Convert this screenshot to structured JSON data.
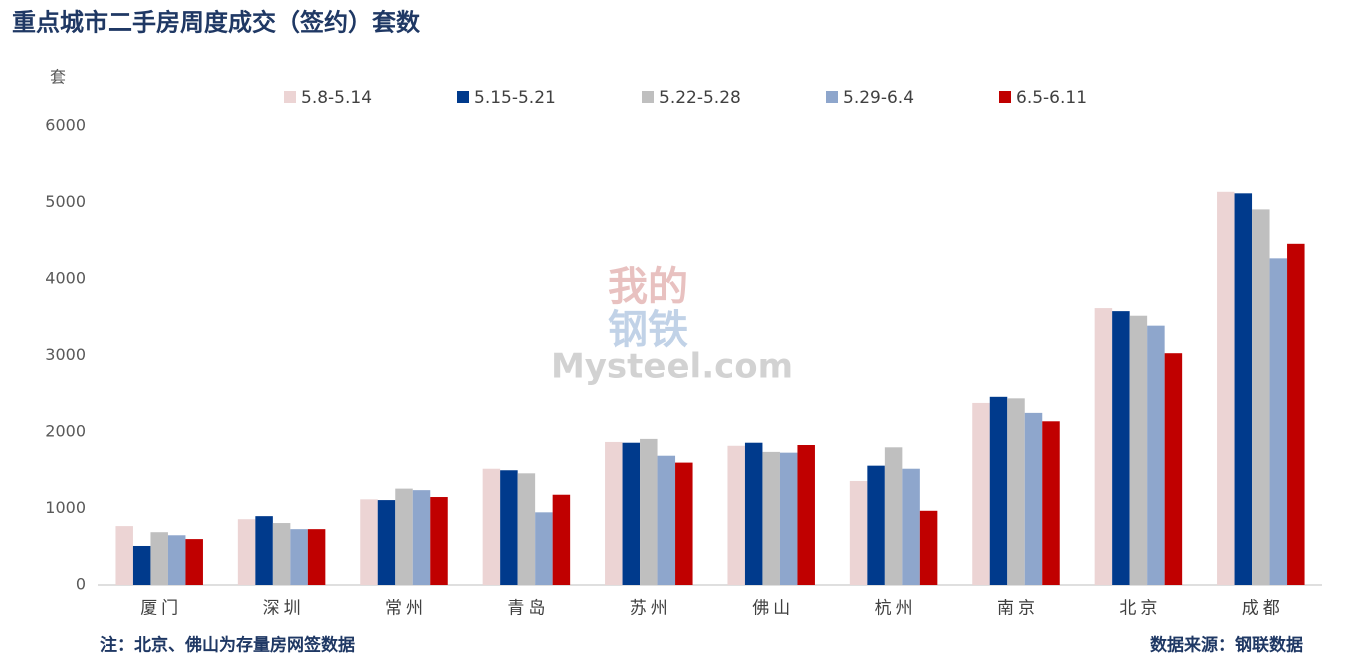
{
  "chart_data": {
    "type": "bar",
    "title": "重点城市二手房周度成交（签约）套数",
    "y_label": "套",
    "watermark": [
      "我的",
      "钢铁",
      "Mysteel.com"
    ],
    "note": "注：北京、佛山为存量房网签数据",
    "source": "数据来源：钢联数据",
    "categories": [
      "厦门",
      "深圳",
      "常州",
      "青岛",
      "苏州",
      "佛山",
      "杭州",
      "南京",
      "北京",
      "成都"
    ],
    "series": [
      {
        "name": "5.8-5.14",
        "color": "#ecd4d4",
        "values": [
          770,
          860,
          1120,
          1520,
          1870,
          1820,
          1360,
          2380,
          3620,
          5140
        ]
      },
      {
        "name": "5.15-5.21",
        "color": "#003a8c",
        "values": [
          510,
          900,
          1110,
          1500,
          1860,
          1860,
          1560,
          2460,
          3580,
          5120
        ]
      },
      {
        "name": "5.22-5.28",
        "color": "#bfbfbf",
        "values": [
          690,
          810,
          1260,
          1460,
          1910,
          1740,
          1800,
          2440,
          3520,
          4910
        ]
      },
      {
        "name": "5.29-6.4",
        "color": "#8ea6cc",
        "values": [
          650,
          730,
          1240,
          950,
          1690,
          1730,
          1520,
          2250,
          3390,
          4270
        ]
      },
      {
        "name": "6.5-6.11",
        "color": "#c00000",
        "values": [
          600,
          730,
          1150,
          1180,
          1600,
          1830,
          970,
          2140,
          3030,
          4460
        ]
      }
    ],
    "ylim": [
      0,
      6000
    ],
    "yticks": [
      0,
      1000,
      2000,
      3000,
      4000,
      5000,
      6000
    ],
    "grid": false,
    "legend": "top"
  }
}
